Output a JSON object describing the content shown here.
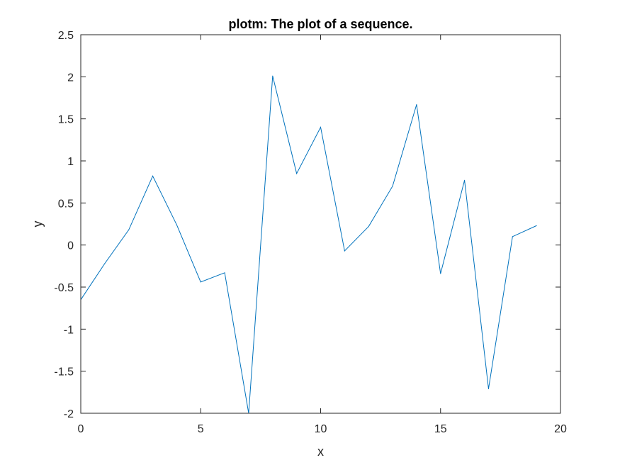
{
  "chart_data": {
    "type": "line",
    "title": "plotm: The plot of a sequence.",
    "xlabel": "x",
    "ylabel": "y",
    "xlim": [
      0,
      20
    ],
    "ylim": [
      -2,
      2.5
    ],
    "xticks": [
      0,
      5,
      10,
      15,
      20
    ],
    "yticks": [
      -2,
      -1.5,
      -1,
      -0.5,
      0,
      0.5,
      1,
      1.5,
      2,
      2.5
    ],
    "xtick_labels": [
      "0",
      "5",
      "10",
      "15",
      "20"
    ],
    "ytick_labels": [
      "-2",
      "-1.5",
      "-1",
      "-0.5",
      "0",
      "0.5",
      "1",
      "1.5",
      "2",
      "2.5"
    ],
    "grid": false,
    "series": [
      {
        "color": "#0072bd",
        "x": [
          0,
          1,
          2,
          3,
          4,
          5,
          6,
          7,
          8,
          9,
          10,
          11,
          12,
          13,
          14,
          15,
          16,
          17,
          18,
          19
        ],
        "y": [
          -0.65,
          -0.22,
          0.18,
          0.82,
          0.24,
          -0.44,
          -0.33,
          -2.0,
          2.01,
          0.85,
          1.4,
          -0.07,
          0.22,
          0.7,
          1.67,
          -0.34,
          0.77,
          -1.71,
          0.1,
          0.23
        ]
      }
    ]
  }
}
